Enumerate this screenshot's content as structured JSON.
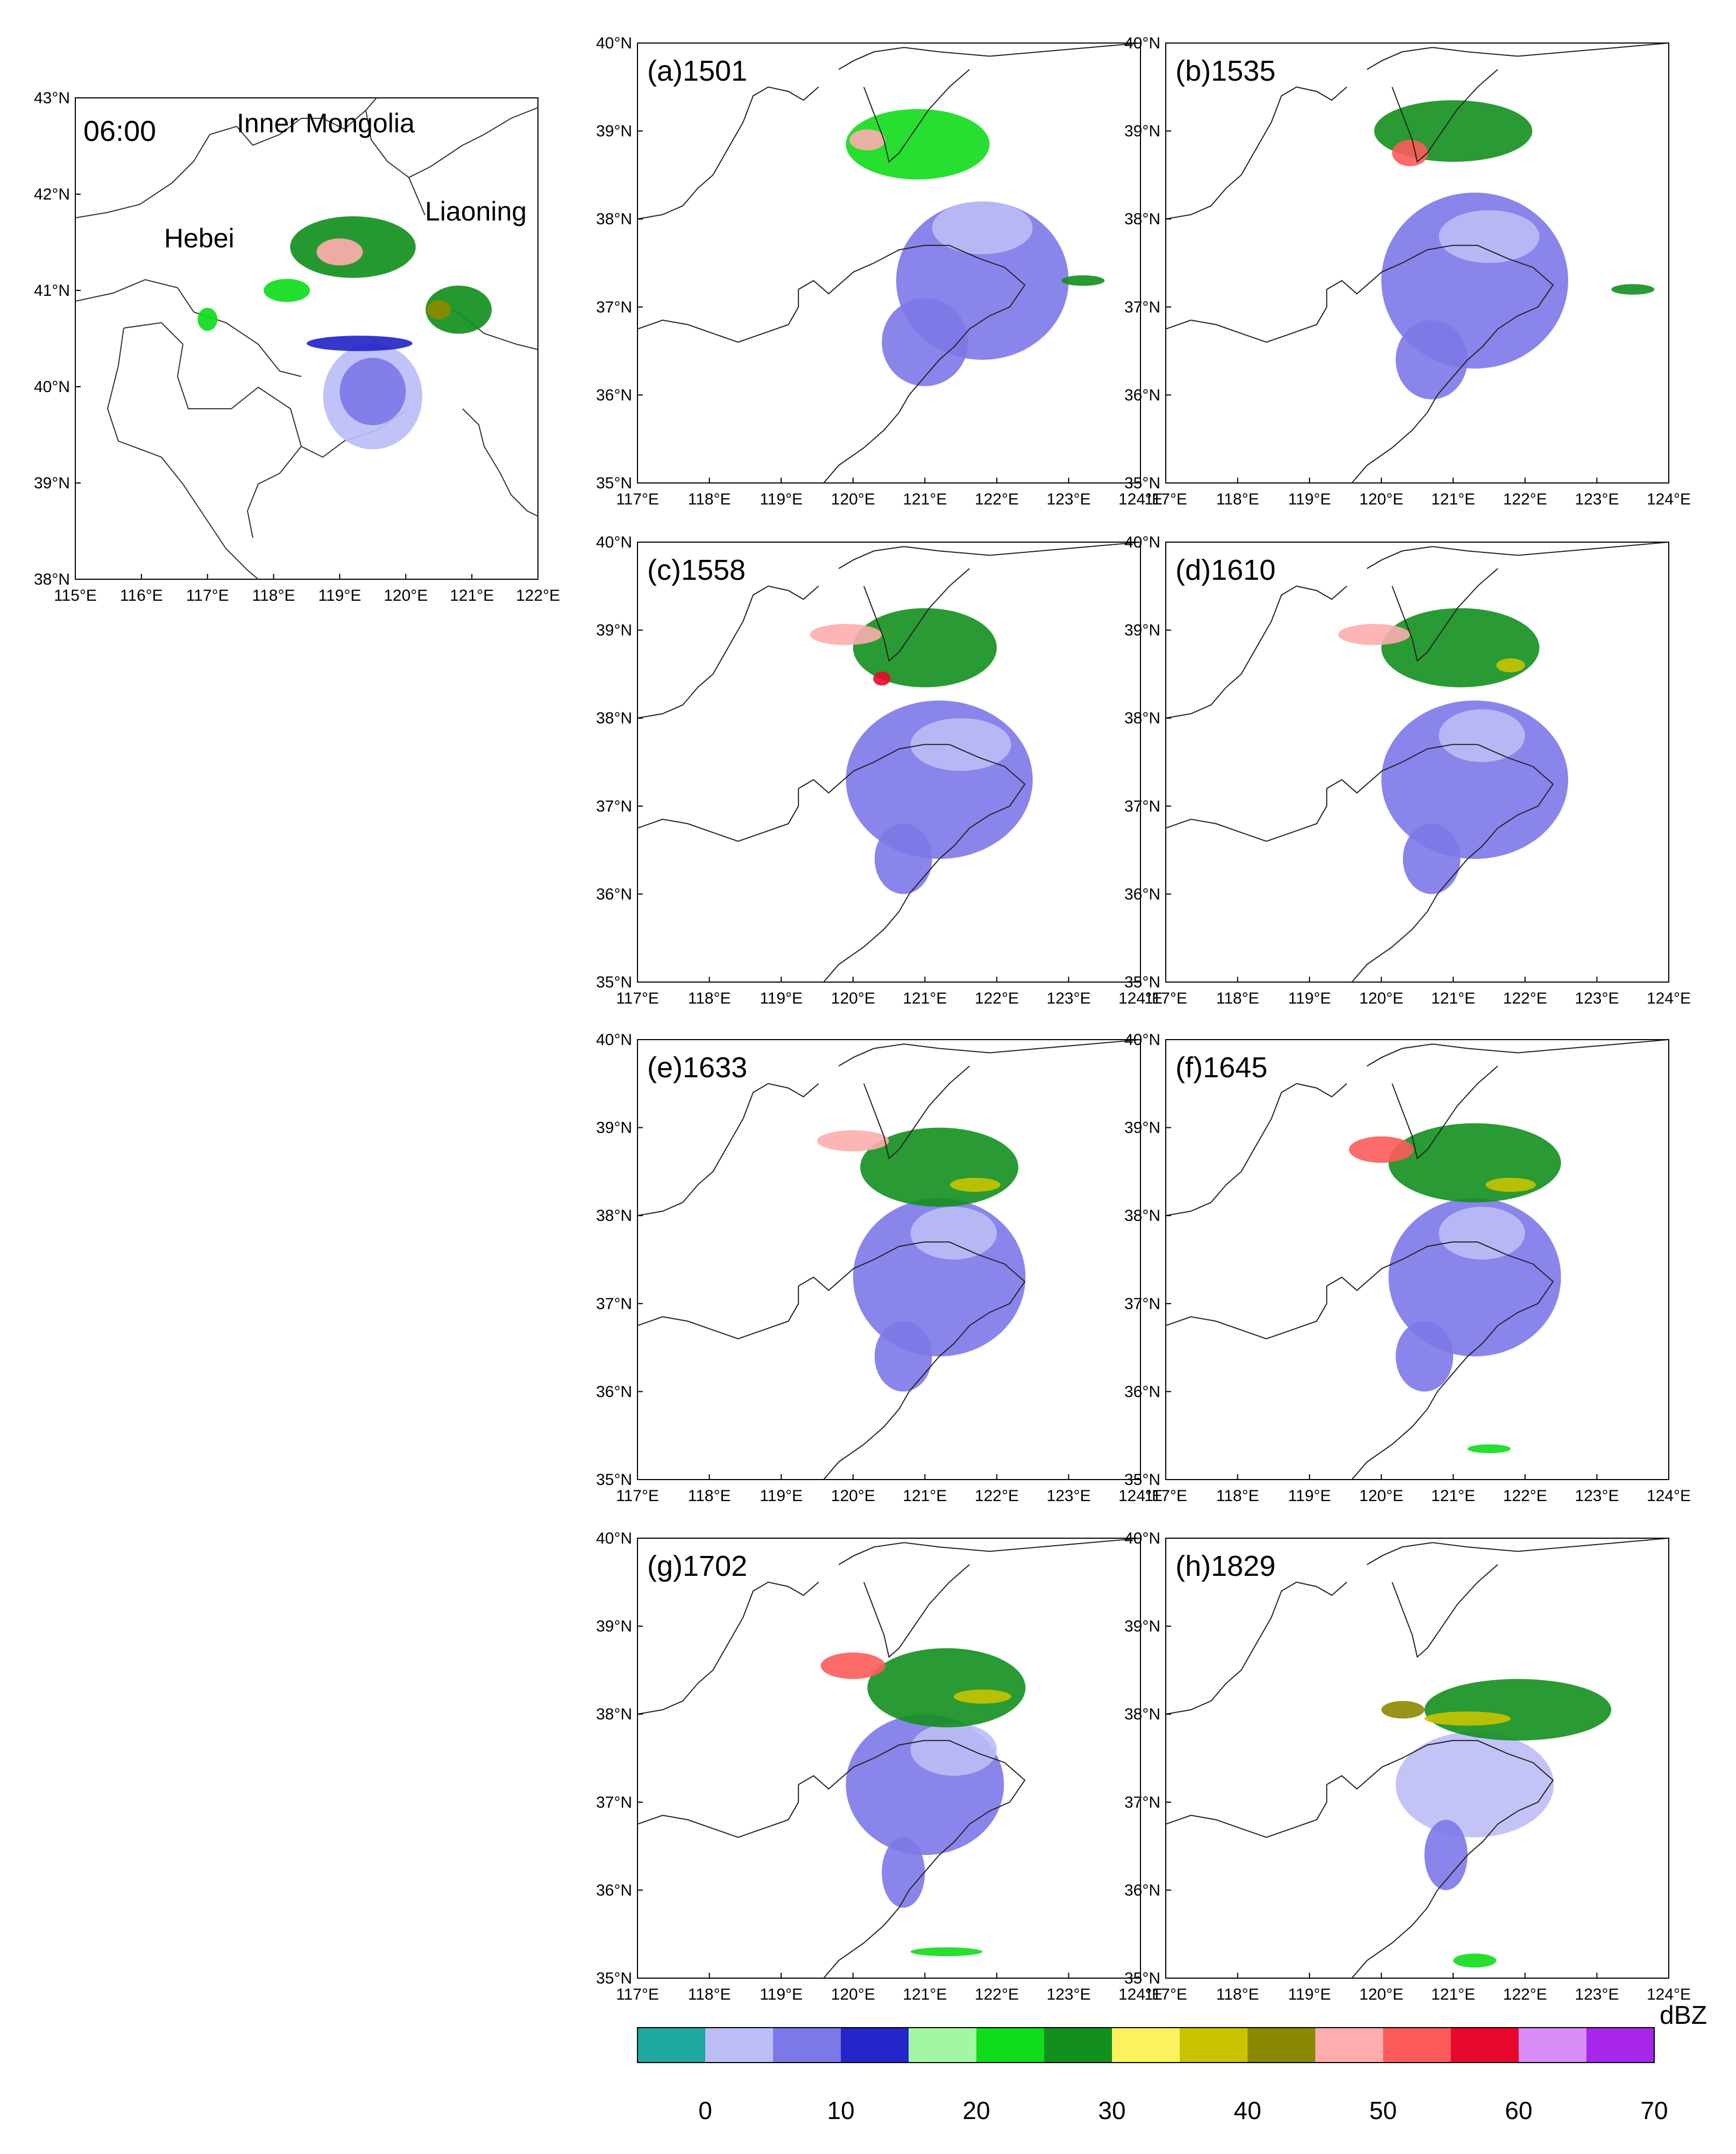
{
  "overview_map": {
    "time_label": "06:00",
    "regions": [
      "Inner Mongolia",
      "Hebei",
      "Liaoning"
    ],
    "lon_ticks": [
      "115°E",
      "116°E",
      "117°E",
      "118°E",
      "119°E",
      "120°E",
      "121°E",
      "122°E"
    ],
    "lat_ticks": [
      "43°N",
      "42°N",
      "41°N",
      "40°N",
      "39°N",
      "38°N"
    ],
    "lon_range": [
      115,
      122
    ],
    "lat_range": [
      38,
      43
    ],
    "echoes": [
      {
        "lon": 119.2,
        "lat": 41.45,
        "rlon": 0.95,
        "rlat": 0.32,
        "dbz": 25
      },
      {
        "lon": 119.0,
        "lat": 41.4,
        "rlon": 0.35,
        "rlat": 0.14,
        "dbz": 45
      },
      {
        "lon": 120.8,
        "lat": 40.8,
        "rlon": 0.5,
        "rlat": 0.25,
        "dbz": 25
      },
      {
        "lon": 120.5,
        "lat": 40.8,
        "rlon": 0.18,
        "rlat": 0.1,
        "dbz": 40
      },
      {
        "lon": 118.2,
        "lat": 41.0,
        "rlon": 0.35,
        "rlat": 0.12,
        "dbz": 22
      },
      {
        "lon": 117.0,
        "lat": 40.7,
        "rlon": 0.15,
        "rlat": 0.12,
        "dbz": 22
      },
      {
        "lon": 119.5,
        "lat": 39.9,
        "rlon": 0.75,
        "rlat": 0.55,
        "dbz": 3
      },
      {
        "lon": 119.5,
        "lat": 39.95,
        "rlon": 0.5,
        "rlat": 0.35,
        "dbz": 8
      },
      {
        "lon": 119.3,
        "lat": 40.45,
        "rlon": 0.8,
        "rlat": 0.08,
        "dbz": 12
      }
    ]
  },
  "panel_lon_ticks": [
    "117°E",
    "118°E",
    "119°E",
    "120°E",
    "121°E",
    "122°E",
    "123°E",
    "124°E"
  ],
  "panel_lat_ticks": [
    "40°N",
    "39°N",
    "38°N",
    "37°N",
    "36°N",
    "35°N"
  ],
  "panel_lon_range": [
    117,
    124
  ],
  "panel_lat_range": [
    35,
    40
  ],
  "panels": [
    {
      "label": "(a)1501",
      "echoes": [
        {
          "lon": 121.8,
          "lat": 37.3,
          "rlon": 1.2,
          "rlat": 0.9,
          "dbz": 8
        },
        {
          "lon": 121.0,
          "lat": 36.6,
          "rlon": 0.6,
          "rlat": 0.5,
          "dbz": 8
        },
        {
          "lon": 121.8,
          "lat": 37.9,
          "rlon": 0.7,
          "rlat": 0.3,
          "dbz": 3
        },
        {
          "lon": 120.9,
          "lat": 38.85,
          "rlon": 1.0,
          "rlat": 0.4,
          "dbz": 20
        },
        {
          "lon": 120.2,
          "lat": 38.9,
          "rlon": 0.25,
          "rlat": 0.12,
          "dbz": 48
        },
        {
          "lon": 123.2,
          "lat": 37.3,
          "rlon": 0.3,
          "rlat": 0.06,
          "dbz": 25
        }
      ]
    },
    {
      "label": "(b)1535",
      "echoes": [
        {
          "lon": 121.3,
          "lat": 37.3,
          "rlon": 1.3,
          "rlat": 1.0,
          "dbz": 8
        },
        {
          "lon": 120.7,
          "lat": 36.4,
          "rlon": 0.5,
          "rlat": 0.45,
          "dbz": 8
        },
        {
          "lon": 121.5,
          "lat": 37.8,
          "rlon": 0.7,
          "rlat": 0.3,
          "dbz": 3
        },
        {
          "lon": 121.0,
          "lat": 39.0,
          "rlon": 1.1,
          "rlat": 0.35,
          "dbz": 25
        },
        {
          "lon": 120.4,
          "lat": 38.75,
          "rlon": 0.25,
          "rlat": 0.15,
          "dbz": 50
        },
        {
          "lon": 123.5,
          "lat": 37.2,
          "rlon": 0.3,
          "rlat": 0.06,
          "dbz": 25
        }
      ]
    },
    {
      "label": "(c)1558",
      "echoes": [
        {
          "lon": 121.2,
          "lat": 37.3,
          "rlon": 1.3,
          "rlat": 0.9,
          "dbz": 8
        },
        {
          "lon": 120.7,
          "lat": 36.4,
          "rlon": 0.4,
          "rlat": 0.4,
          "dbz": 8
        },
        {
          "lon": 121.5,
          "lat": 37.7,
          "rlon": 0.7,
          "rlat": 0.3,
          "dbz": 3
        },
        {
          "lon": 121.0,
          "lat": 38.8,
          "rlon": 1.0,
          "rlat": 0.45,
          "dbz": 25
        },
        {
          "lon": 119.9,
          "lat": 38.95,
          "rlon": 0.5,
          "rlat": 0.12,
          "dbz": 48
        },
        {
          "lon": 120.4,
          "lat": 38.45,
          "rlon": 0.12,
          "rlat": 0.08,
          "dbz": 55
        }
      ]
    },
    {
      "label": "(d)1610",
      "echoes": [
        {
          "lon": 121.3,
          "lat": 37.3,
          "rlon": 1.3,
          "rlat": 0.9,
          "dbz": 8
        },
        {
          "lon": 120.7,
          "lat": 36.4,
          "rlon": 0.4,
          "rlat": 0.4,
          "dbz": 8
        },
        {
          "lon": 121.4,
          "lat": 37.8,
          "rlon": 0.6,
          "rlat": 0.3,
          "dbz": 3
        },
        {
          "lon": 121.1,
          "lat": 38.8,
          "rlon": 1.1,
          "rlat": 0.45,
          "dbz": 25
        },
        {
          "lon": 119.9,
          "lat": 38.95,
          "rlon": 0.5,
          "rlat": 0.12,
          "dbz": 48
        },
        {
          "lon": 121.8,
          "lat": 38.6,
          "rlon": 0.2,
          "rlat": 0.08,
          "dbz": 35
        }
      ]
    },
    {
      "label": "(e)1633",
      "echoes": [
        {
          "lon": 121.2,
          "lat": 37.3,
          "rlon": 1.2,
          "rlat": 0.9,
          "dbz": 8
        },
        {
          "lon": 120.7,
          "lat": 36.4,
          "rlon": 0.4,
          "rlat": 0.4,
          "dbz": 8
        },
        {
          "lon": 121.4,
          "lat": 37.8,
          "rlon": 0.6,
          "rlat": 0.3,
          "dbz": 3
        },
        {
          "lon": 121.2,
          "lat": 38.55,
          "rlon": 1.1,
          "rlat": 0.45,
          "dbz": 25
        },
        {
          "lon": 120.0,
          "lat": 38.85,
          "rlon": 0.5,
          "rlat": 0.12,
          "dbz": 48
        },
        {
          "lon": 121.7,
          "lat": 38.35,
          "rlon": 0.35,
          "rlat": 0.08,
          "dbz": 35
        }
      ]
    },
    {
      "label": "(f)1645",
      "echoes": [
        {
          "lon": 121.3,
          "lat": 37.3,
          "rlon": 1.2,
          "rlat": 0.9,
          "dbz": 8
        },
        {
          "lon": 120.6,
          "lat": 36.4,
          "rlon": 0.4,
          "rlat": 0.4,
          "dbz": 8
        },
        {
          "lon": 121.4,
          "lat": 37.8,
          "rlon": 0.6,
          "rlat": 0.3,
          "dbz": 3
        },
        {
          "lon": 121.3,
          "lat": 38.6,
          "rlon": 1.2,
          "rlat": 0.45,
          "dbz": 25
        },
        {
          "lon": 120.0,
          "lat": 38.75,
          "rlon": 0.45,
          "rlat": 0.15,
          "dbz": 50
        },
        {
          "lon": 121.8,
          "lat": 38.35,
          "rlon": 0.35,
          "rlat": 0.08,
          "dbz": 35
        },
        {
          "lon": 121.5,
          "lat": 35.35,
          "rlon": 0.3,
          "rlat": 0.05,
          "dbz": 22
        }
      ]
    },
    {
      "label": "(g)1702",
      "echoes": [
        {
          "lon": 121.0,
          "lat": 37.2,
          "rlon": 1.1,
          "rlat": 0.8,
          "dbz": 8
        },
        {
          "lon": 120.7,
          "lat": 36.2,
          "rlon": 0.3,
          "rlat": 0.4,
          "dbz": 8
        },
        {
          "lon": 121.4,
          "lat": 37.6,
          "rlon": 0.6,
          "rlat": 0.3,
          "dbz": 3
        },
        {
          "lon": 121.3,
          "lat": 38.3,
          "rlon": 1.1,
          "rlat": 0.45,
          "dbz": 25
        },
        {
          "lon": 120.0,
          "lat": 38.55,
          "rlon": 0.45,
          "rlat": 0.15,
          "dbz": 50
        },
        {
          "lon": 121.8,
          "lat": 38.2,
          "rlon": 0.4,
          "rlat": 0.08,
          "dbz": 35
        },
        {
          "lon": 121.3,
          "lat": 35.3,
          "rlon": 0.5,
          "rlat": 0.05,
          "dbz": 22
        }
      ]
    },
    {
      "label": "(h)1829",
      "echoes": [
        {
          "lon": 121.3,
          "lat": 37.2,
          "rlon": 1.1,
          "rlat": 0.6,
          "dbz": 3
        },
        {
          "lon": 120.9,
          "lat": 36.4,
          "rlon": 0.3,
          "rlat": 0.4,
          "dbz": 8
        },
        {
          "lon": 121.9,
          "lat": 38.05,
          "rlon": 1.3,
          "rlat": 0.35,
          "dbz": 25
        },
        {
          "lon": 121.2,
          "lat": 37.95,
          "rlon": 0.6,
          "rlat": 0.08,
          "dbz": 35
        },
        {
          "lon": 120.3,
          "lat": 38.05,
          "rlon": 0.3,
          "rlat": 0.1,
          "dbz": 40
        },
        {
          "lon": 121.3,
          "lat": 35.2,
          "rlon": 0.3,
          "rlat": 0.08,
          "dbz": 22
        }
      ]
    }
  ],
  "colorbar": {
    "unit": "dBZ",
    "tick_labels": [
      "0",
      "10",
      "20",
      "30",
      "40",
      "50",
      "60",
      "70"
    ],
    "bins": [
      {
        "from": -5,
        "to": 0,
        "color": "#1fa89e"
      },
      {
        "from": 0,
        "to": 5,
        "color": "#bcbdf7"
      },
      {
        "from": 5,
        "to": 10,
        "color": "#7d78e8"
      },
      {
        "from": 10,
        "to": 15,
        "color": "#2526c9"
      },
      {
        "from": 15,
        "to": 20,
        "color": "#a3f7a2"
      },
      {
        "from": 20,
        "to": 25,
        "color": "#0fdc1a"
      },
      {
        "from": 25,
        "to": 30,
        "color": "#138f1e"
      },
      {
        "from": 30,
        "to": 35,
        "color": "#fcf25f"
      },
      {
        "from": 35,
        "to": 40,
        "color": "#c8c400"
      },
      {
        "from": 40,
        "to": 45,
        "color": "#8b8900"
      },
      {
        "from": 45,
        "to": 50,
        "color": "#fdadae"
      },
      {
        "from": 50,
        "to": 55,
        "color": "#fd5b5a"
      },
      {
        "from": 55,
        "to": 60,
        "color": "#e8082c"
      },
      {
        "from": 60,
        "to": 65,
        "color": "#d88df7"
      },
      {
        "from": 65,
        "to": 70,
        "color": "#a826ea"
      }
    ]
  }
}
